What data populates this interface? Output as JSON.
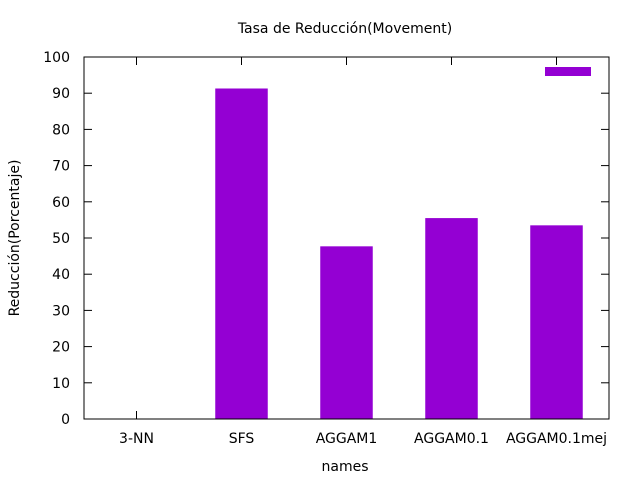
{
  "chart_data": {
    "type": "bar",
    "title": "Tasa de Reducción(Movement)",
    "xlabel": "names",
    "ylabel": "Reducción(Porcentaje)",
    "categories": [
      "3-NN",
      "SFS",
      "AGGAM1",
      "AGGAM0.1",
      "AGGAM0.1mej"
    ],
    "values": [
      0,
      91.3,
      47.7,
      55.5,
      53.5
    ],
    "ylim": [
      0,
      100
    ],
    "yticks": [
      0,
      10,
      20,
      30,
      40,
      50,
      60,
      70,
      80,
      90,
      100
    ],
    "grid": false,
    "legend": "top-right",
    "color": "#9400d3"
  }
}
